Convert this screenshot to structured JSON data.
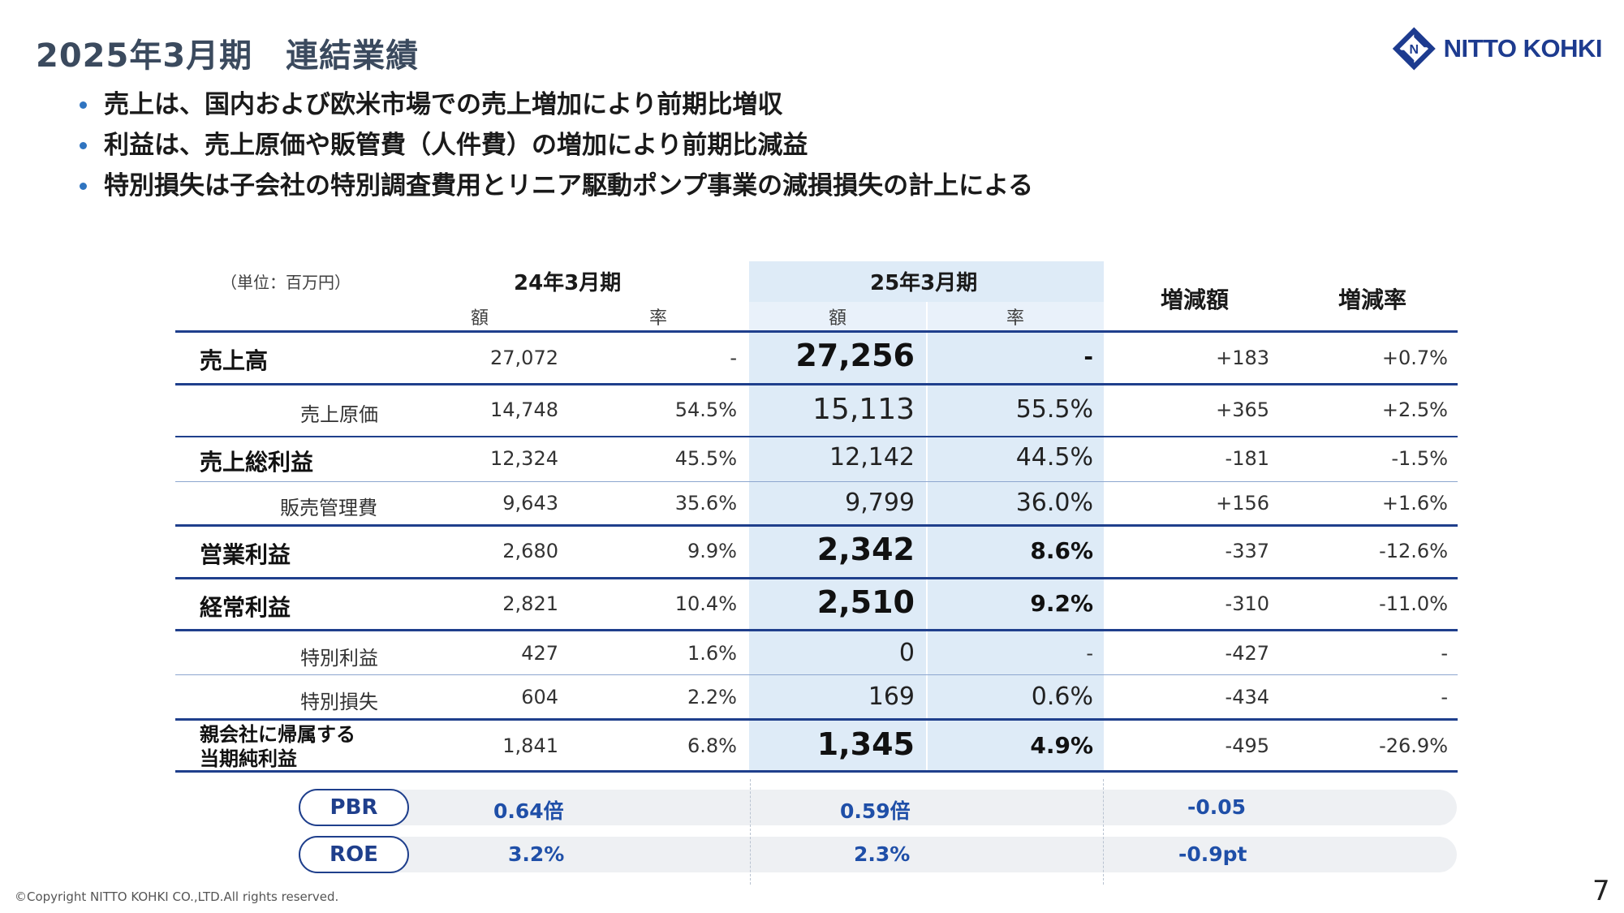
{
  "title": "2025年3月期　連結業績",
  "logo": {
    "text": "NITTO KOHKI",
    "brand_color": "#1d3b8f"
  },
  "bullets": [
    "売上は、国内および欧米市場での売上増加により前期比増収",
    "利益は、売上原価や販管費（人件費）の増加により前期比減益",
    "特別損失は子会社の特別調査費用とリニア駆動ポンプ事業の減損損失の計上による"
  ],
  "table": {
    "unit": "（単位：百万円）",
    "prev_period": "24年3月期",
    "curr_period": "25年3月期",
    "amount_label": "額",
    "rate_label": "率",
    "change_amount_label": "増減額",
    "change_rate_label": "増減率",
    "rows": [
      {
        "label": "売上高",
        "prev_amount": "27,072",
        "prev_rate": "-",
        "curr_amount": "27,256",
        "curr_rate": "-",
        "change": "+183",
        "change_rate": "+0.7%"
      },
      {
        "label": "売上原価",
        "prev_amount": "14,748",
        "prev_rate": "54.5%",
        "curr_amount": "15,113",
        "curr_rate": "55.5%",
        "change": "+365",
        "change_rate": "+2.5%"
      },
      {
        "label": "売上総利益",
        "prev_amount": "12,324",
        "prev_rate": "45.5%",
        "curr_amount": "12,142",
        "curr_rate": "44.5%",
        "change": "-181",
        "change_rate": "-1.5%"
      },
      {
        "label": "販売管理費",
        "prev_amount": "9,643",
        "prev_rate": "35.6%",
        "curr_amount": "9,799",
        "curr_rate": "36.0%",
        "change": "+156",
        "change_rate": "+1.6%"
      },
      {
        "label": "営業利益",
        "prev_amount": "2,680",
        "prev_rate": "9.9%",
        "curr_amount": "2,342",
        "curr_rate": "8.6%",
        "change": "-337",
        "change_rate": "-12.6%"
      },
      {
        "label": "経常利益",
        "prev_amount": "2,821",
        "prev_rate": "10.4%",
        "curr_amount": "2,510",
        "curr_rate": "9.2%",
        "change": "-310",
        "change_rate": "-11.0%"
      },
      {
        "label": "特別利益",
        "prev_amount": "427",
        "prev_rate": "1.6%",
        "curr_amount": "0",
        "curr_rate": "-",
        "change": "-427",
        "change_rate": "-"
      },
      {
        "label": "特別損失",
        "prev_amount": "604",
        "prev_rate": "2.2%",
        "curr_amount": "169",
        "curr_rate": "0.6%",
        "change": "-434",
        "change_rate": "-"
      },
      {
        "label_line1": "親会社に帰属する",
        "label_line2": "当期純利益",
        "prev_amount": "1,841",
        "prev_rate": "6.8%",
        "curr_amount": "1,345",
        "curr_rate": "4.9%",
        "change": "-495",
        "change_rate": "-26.9%"
      }
    ]
  },
  "metrics": [
    {
      "label": "PBR",
      "prev": "0.64倍",
      "curr": "0.59倍",
      "change": "-0.05"
    },
    {
      "label": "ROE",
      "prev": "3.2%",
      "curr": "2.3%",
      "change": "-0.9pt"
    }
  ],
  "footer": {
    "copyright": "©Copyright NITTO KOHKI CO.,LTD.All rights reserved.",
    "page": "7"
  },
  "colors": {
    "accent": "#1f3f8c",
    "highlight_column": "#deebf7",
    "bullet": "#2f74c0"
  }
}
